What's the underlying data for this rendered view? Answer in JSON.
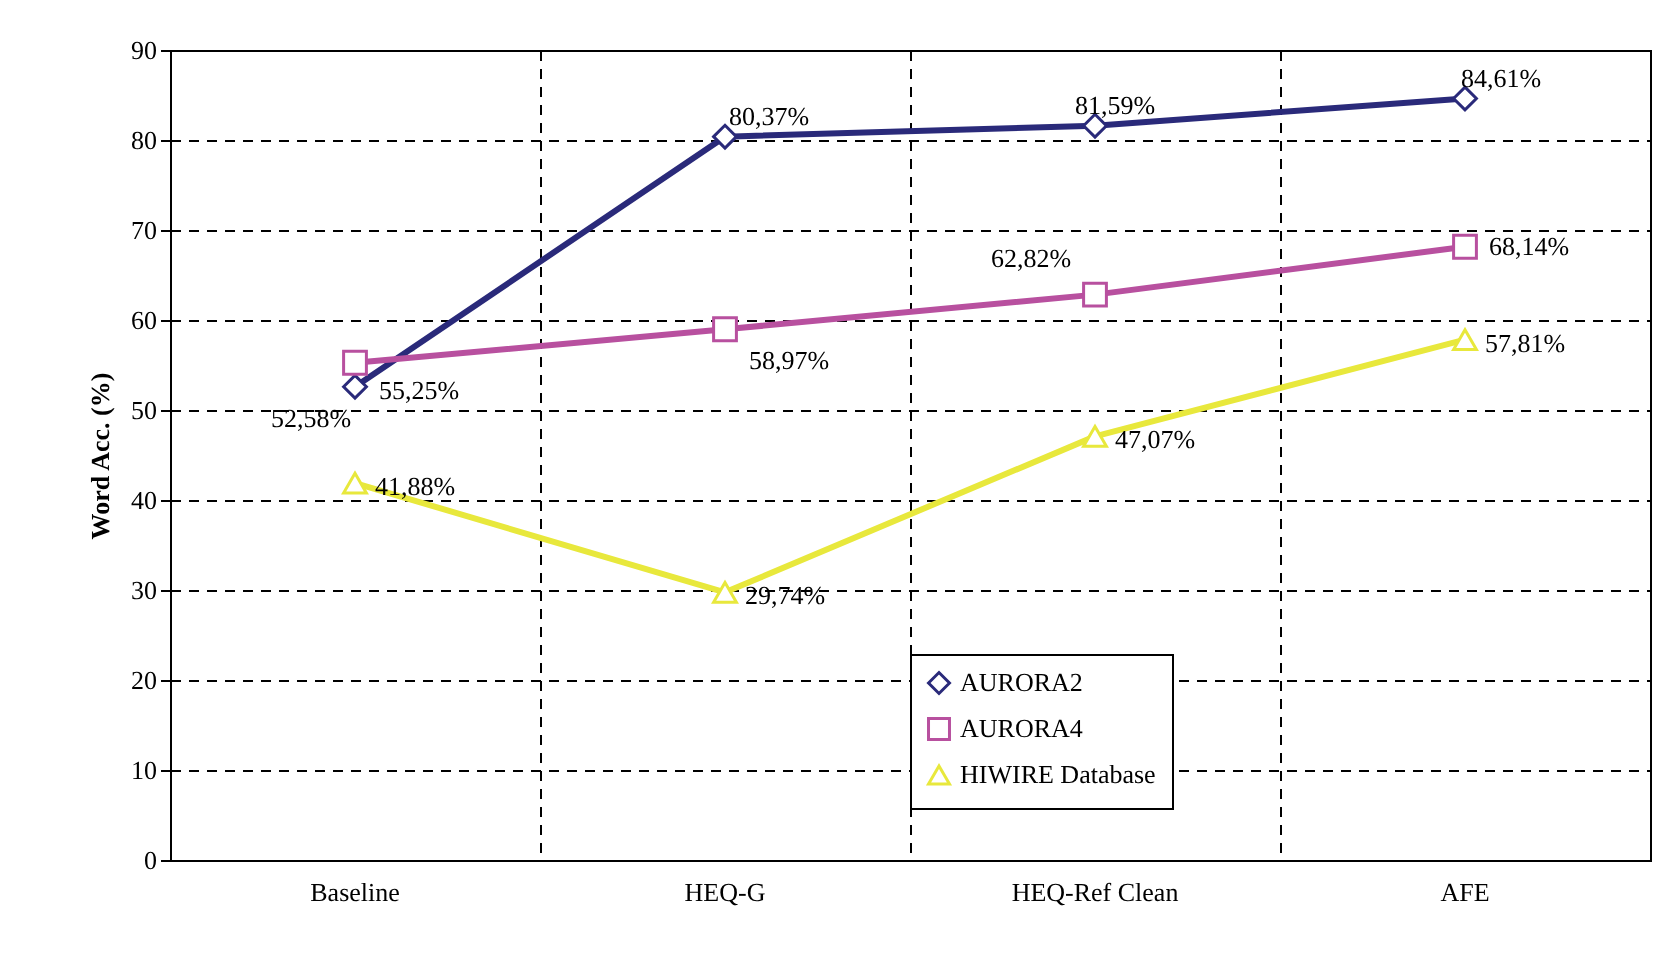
{
  "chart_data": {
    "type": "line",
    "ylabel": "Word Acc. (%)",
    "categories": [
      "Baseline",
      "HEQ-G",
      "HEQ-Ref Clean",
      "AFE"
    ],
    "ylim": [
      0,
      90
    ],
    "yticks": [
      0,
      10,
      20,
      30,
      40,
      50,
      60,
      70,
      80,
      90
    ],
    "grid": true,
    "legend": "bottom",
    "series": [
      {
        "name": "AURORA2",
        "color": "#2a2a7a",
        "marker": "diamond",
        "values": [
          52.58,
          80.37,
          81.59,
          84.61
        ],
        "value_labels": [
          "52,58%",
          "80,37%",
          "81,59%",
          "84,61%"
        ]
      },
      {
        "name": "AURORA4",
        "color": "#b8509f",
        "marker": "square",
        "values": [
          55.25,
          58.97,
          62.82,
          68.14
        ],
        "value_labels": [
          "55,25%",
          "58,97%",
          "62,82%",
          "68,14%"
        ]
      },
      {
        "name": "HIWIRE Database",
        "color": "#e8e83c",
        "marker": "triangle",
        "values": [
          41.88,
          29.74,
          47.07,
          57.81
        ],
        "value_labels": [
          "41,88%",
          "29,74%",
          "47,07%",
          "57,81%"
        ]
      }
    ]
  }
}
